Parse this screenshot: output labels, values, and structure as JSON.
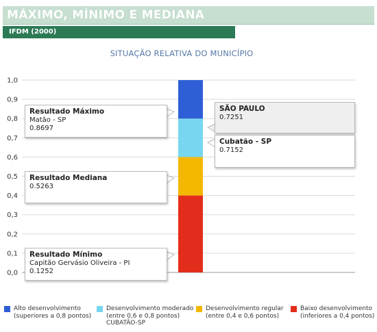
{
  "header": {
    "title": "MÁXIMO, MÍNIMO E MEDIANA",
    "subtitle": "IFDM (2000)"
  },
  "chart_data": {
    "type": "bar",
    "title": "SITUAÇÃO RELATIVA DO MUNICÍPIO",
    "ylim": [
      0,
      1
    ],
    "yticks": [
      "1,0",
      "0,9",
      "0,8",
      "0,7",
      "0,6",
      "0,5",
      "0,4",
      "0,3",
      "0,2",
      "0,1",
      "0,0"
    ],
    "grid": true,
    "bands": [
      {
        "from": 0.0,
        "to": 0.4,
        "color": "#e32d1c"
      },
      {
        "from": 0.4,
        "to": 0.6,
        "color": "#f4b700"
      },
      {
        "from": 0.6,
        "to": 0.8,
        "color": "#77d6f0"
      },
      {
        "from": 0.8,
        "to": 1.0,
        "color": "#2f5fd6"
      }
    ],
    "markers": [
      {
        "key": "max",
        "head": "Resultado Máximo",
        "place": "Matão - SP",
        "value": "0.8697",
        "y": 0.8697,
        "side": "left"
      },
      {
        "key": "median",
        "head": "Resultado Mediana",
        "place": "",
        "value": "0.5263",
        "y": 0.5263,
        "side": "left"
      },
      {
        "key": "min",
        "head": "Resultado Mínimo",
        "place": "Capitão Gervásio Oliveira - PI",
        "value": "0.1252",
        "y": 0.1252,
        "side": "left"
      },
      {
        "key": "state",
        "head": "SÃO PAULO",
        "place": "",
        "value": "0.7251",
        "y": 0.7251,
        "side": "right"
      },
      {
        "key": "city",
        "head": "Cubatão - SP",
        "place": "",
        "value": "0.7152",
        "y": 0.7152,
        "side": "right"
      }
    ],
    "legend": [
      {
        "label": "Alto desenvolvimento",
        "detail": "(superiores a 0,8 pontos)",
        "extra": "",
        "color": "#2f5fd6"
      },
      {
        "label": "Desenvolvimento moderado",
        "detail": "(entre 0,6 e 0,8 pontos)",
        "extra": "CUBATÃO-SP",
        "color": "#77d6f0"
      },
      {
        "label": "Desenvolvimento regular",
        "detail": "(entre 0,4 e 0,6 pontos)",
        "extra": "",
        "color": "#f4b700"
      },
      {
        "label": "Baixo desenvolvimento",
        "detail": "(inferiores a 0,4 pontos)",
        "extra": "",
        "color": "#e32d1c"
      }
    ],
    "legend_placement": "bottom"
  }
}
